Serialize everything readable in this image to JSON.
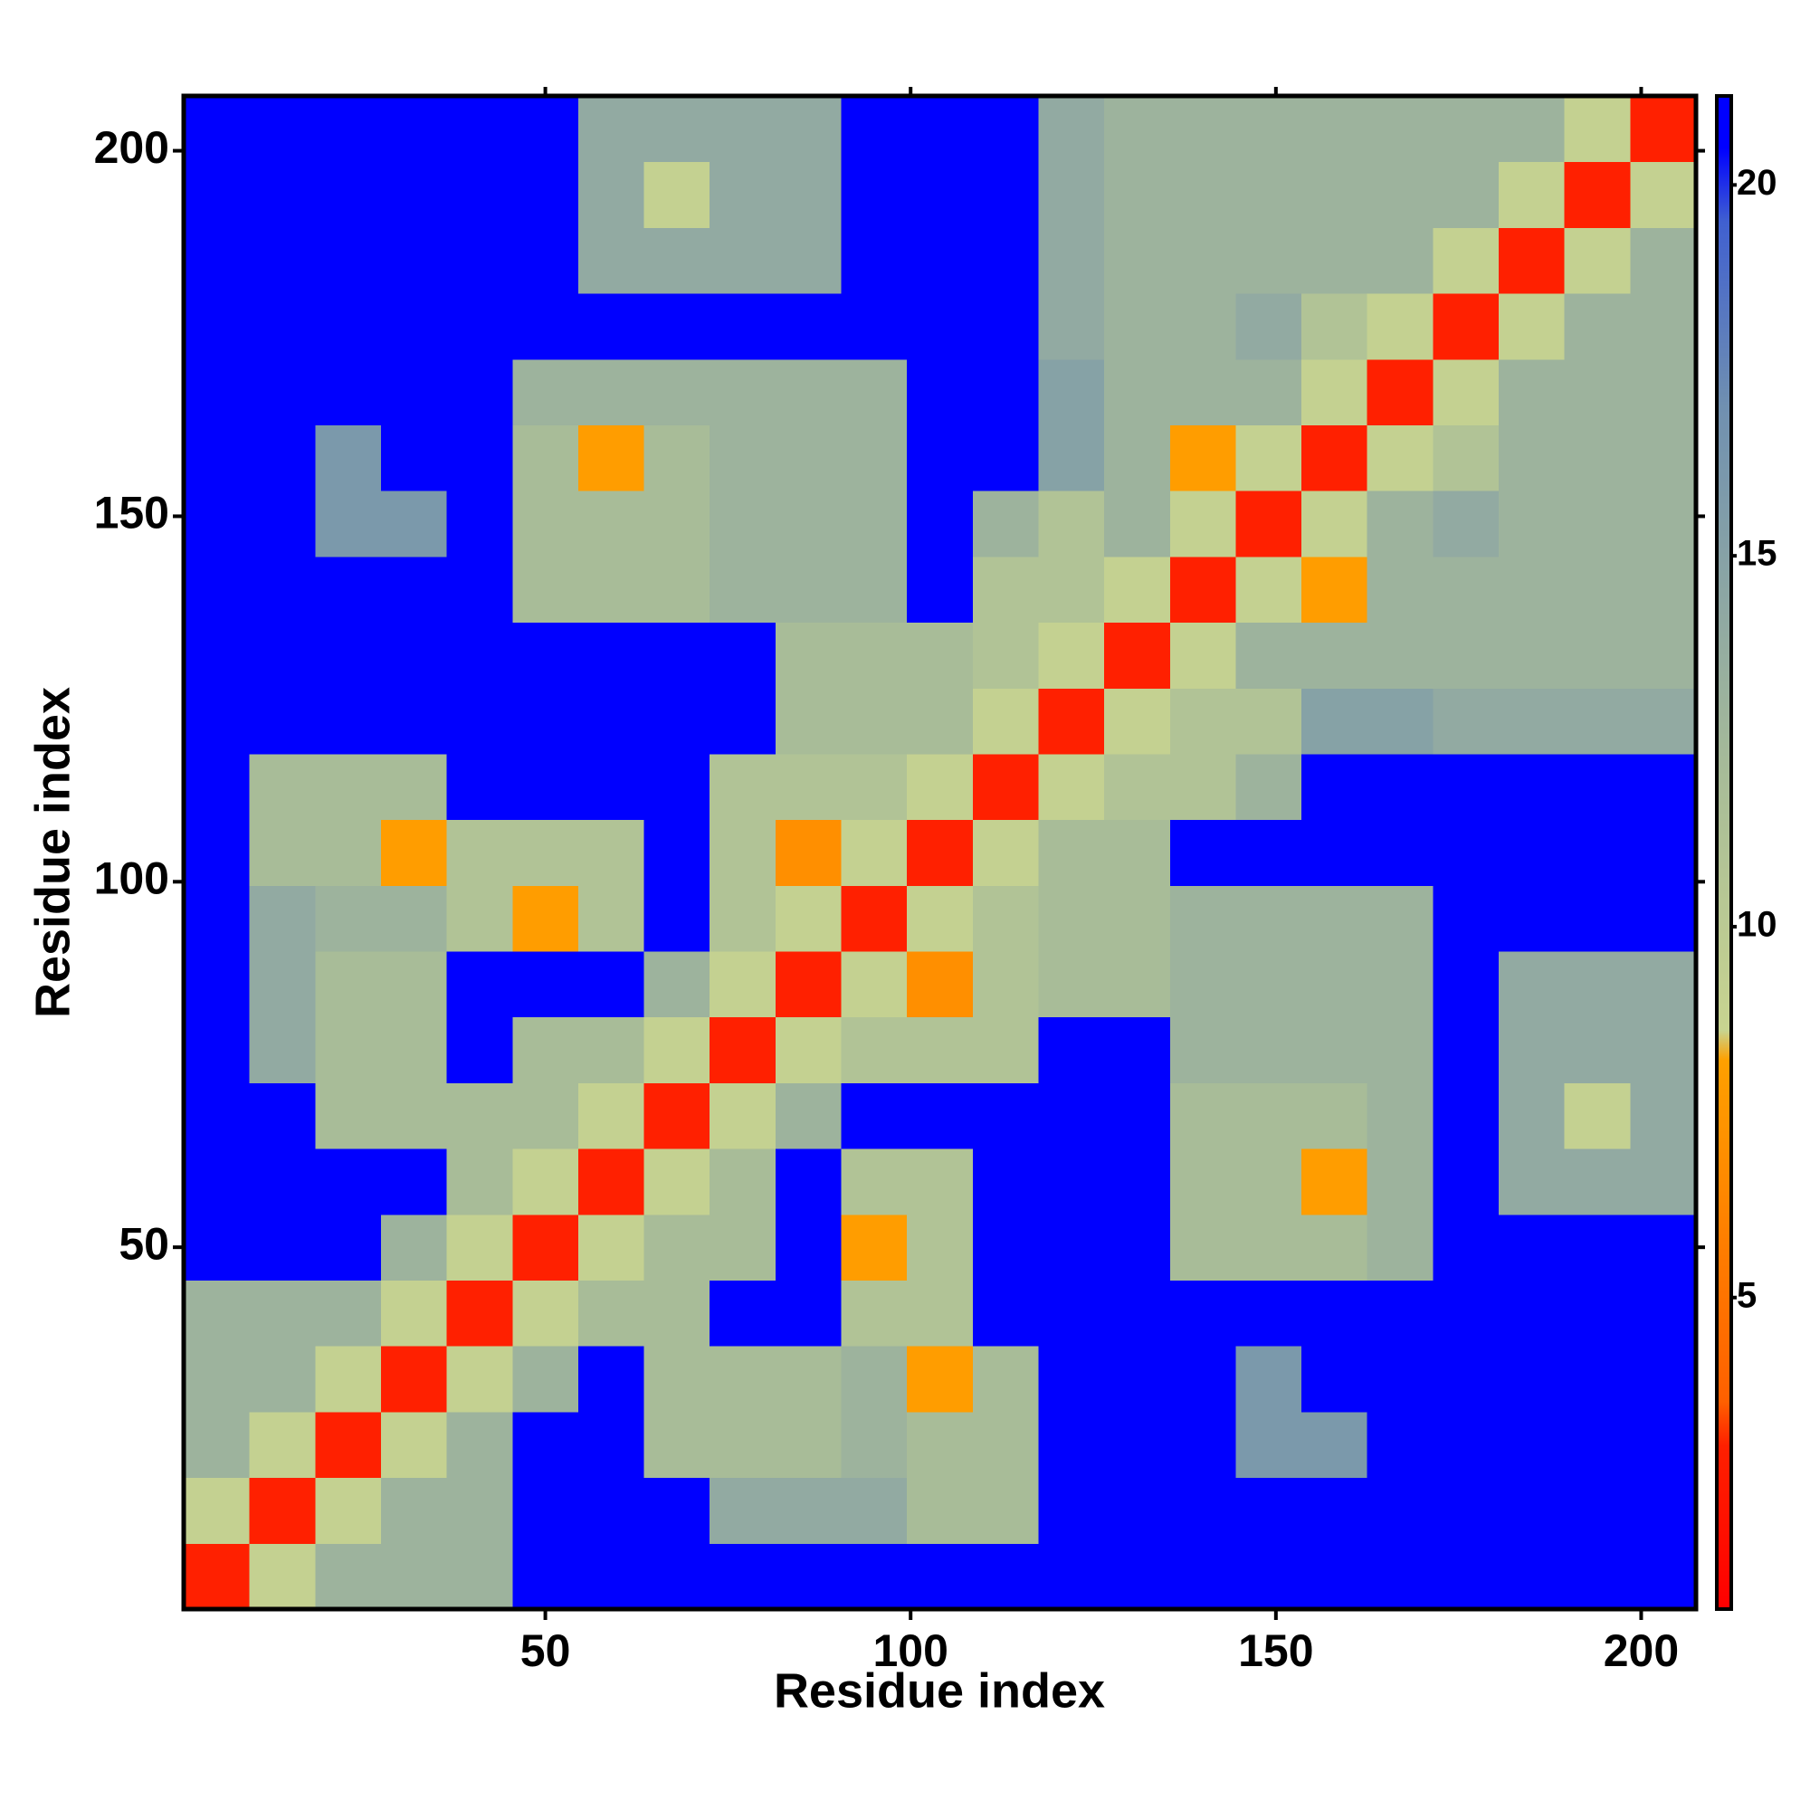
{
  "chart_data": {
    "type": "heatmap",
    "x_label": "Residue index",
    "y_label": "Residue index",
    "x": [
      5,
      14,
      23,
      32,
      41,
      50,
      59,
      68,
      77,
      86,
      95,
      104,
      113,
      122,
      131,
      140,
      149,
      158,
      167,
      176,
      185,
      194,
      203
    ],
    "y": [
      5,
      14,
      23,
      32,
      41,
      50,
      59,
      68,
      77,
      86,
      95,
      104,
      113,
      122,
      131,
      140,
      149,
      158,
      167,
      176,
      185,
      194,
      203
    ],
    "z": [
      [
        3,
        9,
        13,
        13,
        13,
        21,
        21,
        21,
        21,
        21,
        21,
        21,
        21,
        21,
        21,
        21,
        21,
        21,
        21,
        21,
        21,
        21,
        21
      ],
      [
        9,
        3,
        9,
        13,
        13,
        21,
        21,
        21,
        14,
        14,
        14,
        12,
        12,
        21,
        21,
        21,
        21,
        21,
        21,
        21,
        21,
        21,
        21
      ],
      [
        13,
        9,
        3,
        9,
        13,
        21,
        21,
        12,
        12,
        12,
        13,
        12,
        12,
        21,
        21,
        21,
        16,
        16,
        21,
        21,
        21,
        21,
        21
      ],
      [
        13,
        13,
        9,
        3,
        9,
        13,
        21,
        12,
        12,
        12,
        13,
        8,
        12,
        21,
        21,
        21,
        16,
        21,
        21,
        21,
        21,
        21,
        21
      ],
      [
        13,
        13,
        13,
        9,
        3,
        9,
        12,
        12,
        21,
        21,
        11,
        11,
        21,
        21,
        21,
        21,
        21,
        21,
        21,
        21,
        21,
        21,
        21
      ],
      [
        21,
        21,
        21,
        13,
        9,
        3,
        9,
        12,
        12,
        21,
        8,
        11,
        21,
        21,
        21,
        12,
        12,
        12,
        13,
        21,
        21,
        21,
        21
      ],
      [
        21,
        21,
        21,
        21,
        12,
        9,
        3,
        9,
        12,
        21,
        11,
        11,
        21,
        21,
        21,
        12,
        12,
        8,
        13,
        21,
        14,
        14,
        14
      ],
      [
        21,
        21,
        12,
        12,
        12,
        12,
        9,
        3,
        9,
        13,
        21,
        21,
        21,
        21,
        21,
        12,
        12,
        12,
        13,
        21,
        14,
        9,
        14
      ],
      [
        21,
        14,
        12,
        12,
        21,
        12,
        12,
        9,
        3,
        9,
        11,
        11,
        11,
        21,
        21,
        13,
        13,
        13,
        13,
        21,
        14,
        14,
        14
      ],
      [
        21,
        14,
        12,
        12,
        21,
        21,
        21,
        13,
        9,
        3,
        9,
        7,
        11,
        12,
        12,
        13,
        13,
        13,
        13,
        21,
        14,
        14,
        14
      ],
      [
        21,
        14,
        13,
        13,
        11,
        8,
        11,
        21,
        11,
        9,
        3,
        9,
        11,
        12,
        12,
        13,
        13,
        13,
        13,
        21,
        21,
        21,
        21
      ],
      [
        21,
        12,
        12,
        8,
        11,
        11,
        11,
        21,
        11,
        7,
        9,
        3,
        9,
        12,
        12,
        21,
        21,
        21,
        21,
        21,
        21,
        21,
        21
      ],
      [
        21,
        12,
        12,
        12,
        21,
        21,
        21,
        21,
        11,
        11,
        11,
        9,
        3,
        9,
        11,
        11,
        13,
        21,
        21,
        21,
        21,
        21,
        21
      ],
      [
        21,
        21,
        21,
        21,
        21,
        21,
        21,
        21,
        21,
        12,
        12,
        12,
        9,
        3,
        9,
        11,
        11,
        15,
        15,
        14,
        14,
        14,
        14
      ],
      [
        21,
        21,
        21,
        21,
        21,
        21,
        21,
        21,
        21,
        12,
        12,
        12,
        11,
        9,
        3,
        9,
        13,
        13,
        13,
        13,
        13,
        13,
        13
      ],
      [
        21,
        21,
        21,
        21,
        21,
        12,
        12,
        12,
        13,
        13,
        13,
        21,
        11,
        11,
        9,
        3,
        9,
        8,
        13,
        13,
        13,
        13,
        13
      ],
      [
        21,
        21,
        16,
        16,
        21,
        12,
        12,
        12,
        13,
        13,
        13,
        21,
        13,
        11,
        13,
        9,
        3,
        9,
        13,
        14,
        13,
        13,
        13
      ],
      [
        21,
        21,
        16,
        21,
        21,
        12,
        8,
        12,
        13,
        13,
        13,
        21,
        21,
        15,
        13,
        8,
        9,
        3,
        9,
        11,
        13,
        13,
        13
      ],
      [
        21,
        21,
        21,
        21,
        21,
        13,
        13,
        13,
        13,
        13,
        13,
        21,
        21,
        15,
        13,
        13,
        13,
        9,
        3,
        9,
        13,
        13,
        13
      ],
      [
        21,
        21,
        21,
        21,
        21,
        21,
        21,
        21,
        21,
        21,
        21,
        21,
        21,
        14,
        13,
        13,
        14,
        11,
        9,
        3,
        9,
        13,
        13
      ],
      [
        21,
        21,
        21,
        21,
        21,
        21,
        14,
        14,
        14,
        14,
        21,
        21,
        21,
        14,
        13,
        13,
        13,
        13,
        13,
        9,
        3,
        9,
        13
      ],
      [
        21,
        21,
        21,
        21,
        21,
        21,
        14,
        9,
        14,
        14,
        21,
        21,
        21,
        14,
        13,
        13,
        13,
        13,
        13,
        13,
        9,
        3,
        9
      ],
      [
        21,
        21,
        21,
        21,
        21,
        21,
        14,
        14,
        14,
        14,
        21,
        21,
        21,
        14,
        13,
        13,
        13,
        13,
        13,
        13,
        13,
        9,
        3
      ]
    ],
    "xlim": [
      0.5,
      207.5
    ],
    "ylim": [
      0.5,
      207.5
    ],
    "xticks": [
      50,
      100,
      150,
      200
    ],
    "yticks": [
      50,
      100,
      150,
      200
    ],
    "zlim": [
      0.8,
      21.2
    ],
    "zticks": [
      5,
      10,
      15,
      20
    ],
    "colorscale": [
      {
        "value": 0.8,
        "color": "#ff0000"
      },
      {
        "value": 3.0,
        "color": "#ff2000"
      },
      {
        "value": 3.6,
        "color": "#ff6000"
      },
      {
        "value": 8.2,
        "color": "#ffa000"
      },
      {
        "value": 8.6,
        "color": "#c8d490"
      },
      {
        "value": 12,
        "color": "#a8bc98"
      },
      {
        "value": 17,
        "color": "#7090b0"
      },
      {
        "value": 19.5,
        "color": "#4060d0"
      },
      {
        "value": 20.5,
        "color": "#0000ff"
      },
      {
        "value": 21.2,
        "color": "#0000ff"
      }
    ]
  }
}
